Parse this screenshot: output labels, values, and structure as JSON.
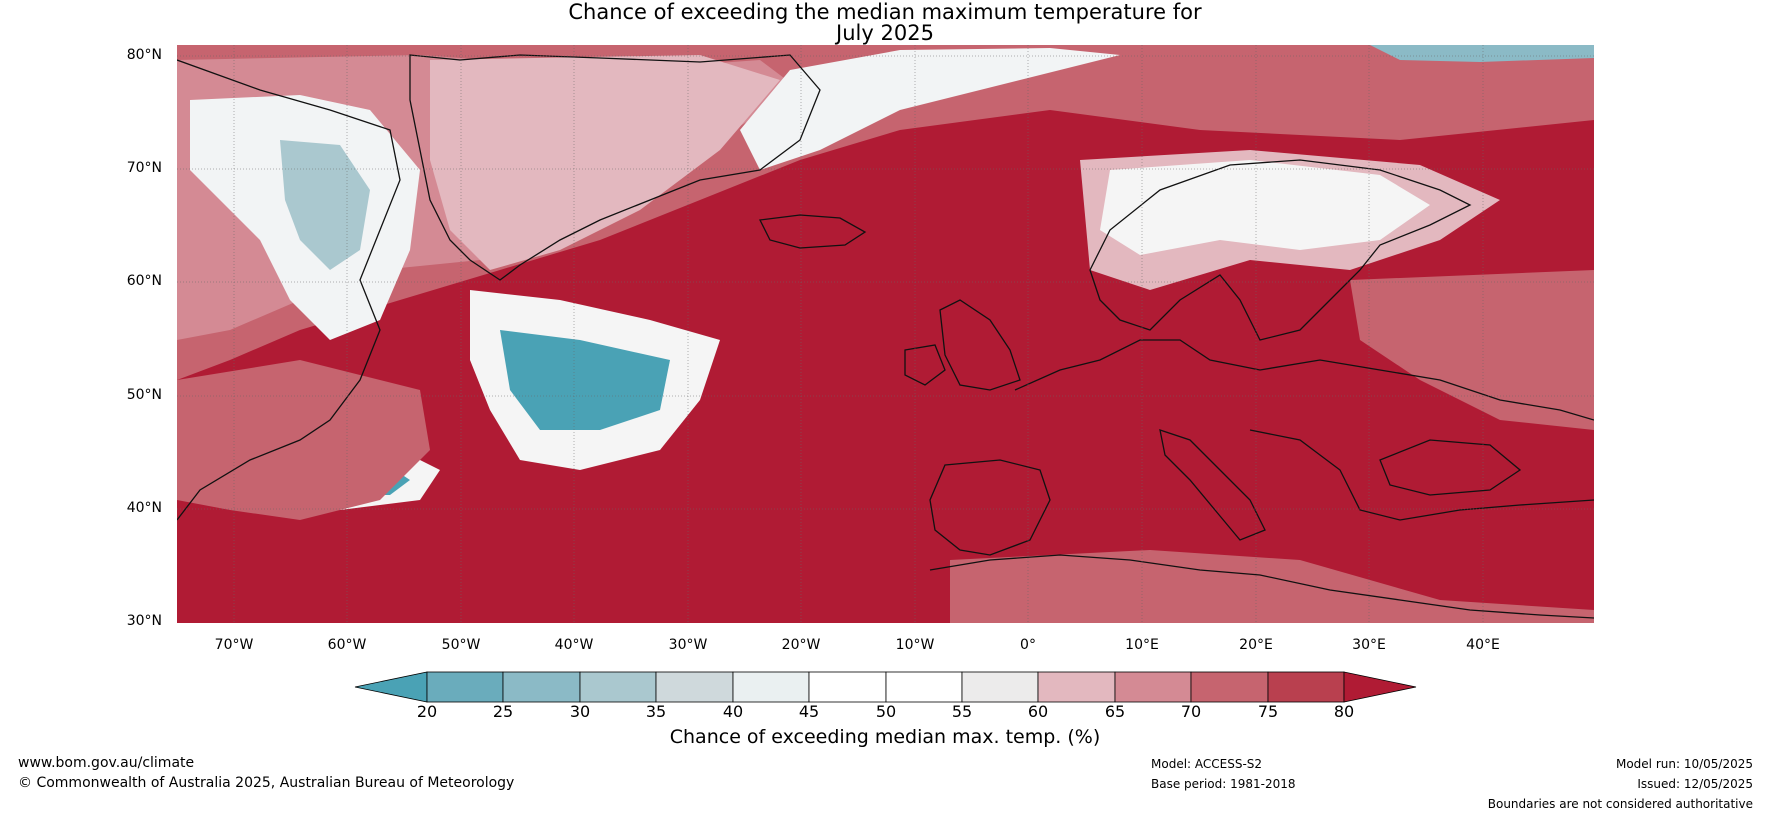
{
  "title_line1": "Chance of exceeding the median maximum temperature for",
  "title_line2": "July 2025",
  "lat_labels": [
    "80°N",
    "70°N",
    "60°N",
    "50°N",
    "40°N",
    "30°N"
  ],
  "lon_labels": [
    "70°W",
    "60°W",
    "50°W",
    "40°W",
    "30°W",
    "20°W",
    "10°W",
    "0°",
    "10°E",
    "20°E",
    "30°E",
    "40°E"
  ],
  "colorbar": {
    "ticks": [
      "20",
      "25",
      "30",
      "35",
      "40",
      "45",
      "50",
      "55",
      "60",
      "65",
      "70",
      "75",
      "80"
    ],
    "colors": [
      "#4aa2b5",
      "#6aacbc",
      "#8bbac6",
      "#aac8cf",
      "#cfd9dc",
      "#eaf0f1",
      "#ffffff",
      "#ffffff",
      "#ecebeb",
      "#e3b8bf",
      "#d48a94",
      "#c6646f",
      "#b9404f",
      "#b01b34"
    ],
    "label": "Chance of exceeding median max. temp. (%)"
  },
  "footer": {
    "url": "www.bom.gov.au/climate",
    "copyright": "© Commonwealth of Australia 2025, Australian Bureau of Meteorology",
    "model": "Model: ACCESS-S2",
    "base_period": "Base period: 1981-2018",
    "model_run": "Model run: 10/05/2025",
    "issued": "Issued: 12/05/2025",
    "disclaimer": "Boundaries are not considered authoritative"
  }
}
